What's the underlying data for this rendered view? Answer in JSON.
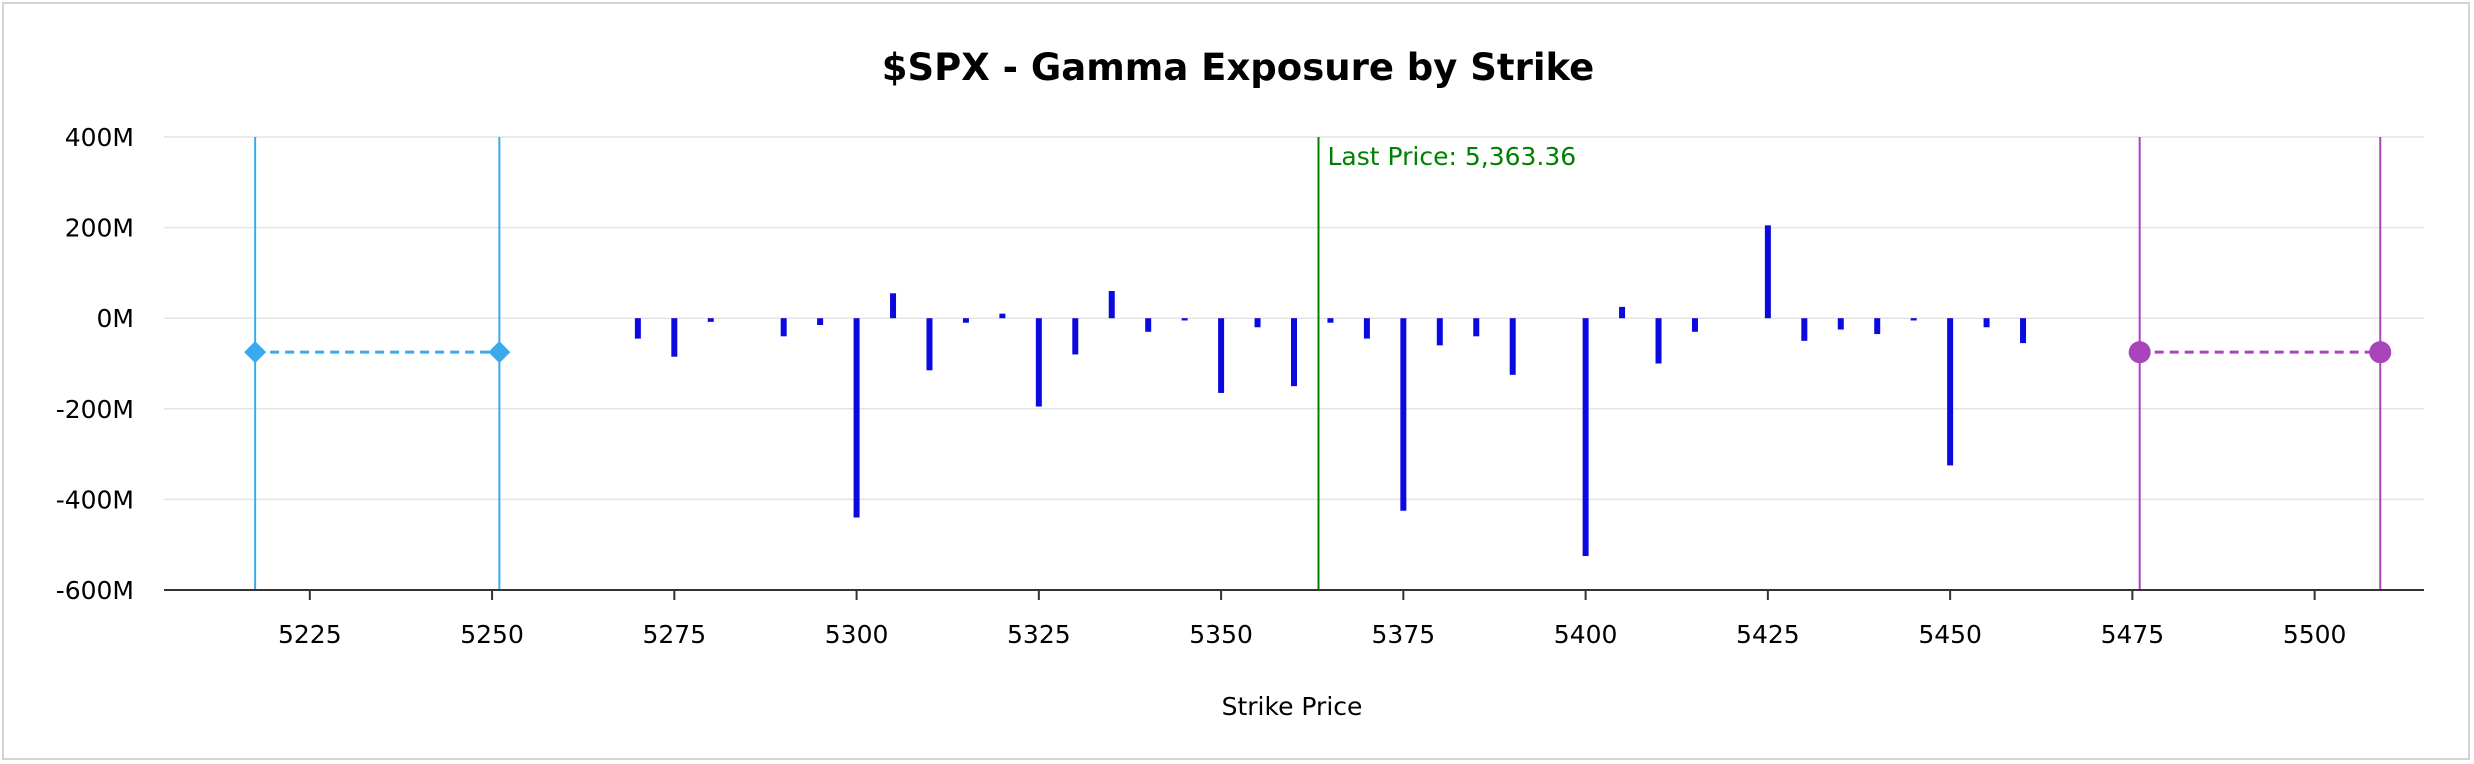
{
  "chart_data": {
    "type": "bar",
    "title": "$SPX - Gamma Exposure by Strike",
    "xlabel": "Strike Price",
    "ylabel": "",
    "unit": "M",
    "xlim": [
      5205,
      5515
    ],
    "ylim": [
      -600,
      400
    ],
    "x_ticks": [
      5225,
      5250,
      5275,
      5300,
      5325,
      5350,
      5375,
      5400,
      5425,
      5450,
      5475,
      5500
    ],
    "y_ticks": [
      400,
      200,
      0,
      -200,
      -400,
      -600
    ],
    "y_tick_labels": [
      "400M",
      "200M",
      "0M",
      "-200M",
      "-400M",
      "-600M"
    ],
    "grid": "horizontal",
    "bar_color": "#0a0ae0",
    "x": [
      5270,
      5275,
      5280,
      5290,
      5295,
      5300,
      5305,
      5310,
      5315,
      5320,
      5325,
      5330,
      5335,
      5340,
      5345,
      5350,
      5355,
      5360,
      5365,
      5370,
      5375,
      5380,
      5385,
      5390,
      5400,
      5405,
      5410,
      5415,
      5425,
      5430,
      5435,
      5440,
      5445,
      5450,
      5455,
      5460
    ],
    "values": [
      -45,
      -85,
      -8,
      -40,
      -15,
      -440,
      55,
      -115,
      -10,
      10,
      -195,
      -80,
      60,
      -30,
      -5,
      -165,
      -20,
      -150,
      -10,
      -45,
      -425,
      -60,
      -40,
      -125,
      -525,
      25,
      -100,
      -30,
      205,
      -50,
      -25,
      -35,
      -5,
      -325,
      -20,
      -55
    ],
    "last_price": {
      "label": "Last Price: 5,363.36",
      "value": 5363.36,
      "color": "#008000"
    },
    "put_wall": {
      "x1": 5217.5,
      "x2": 5251,
      "y": -75,
      "color": "#3aaaee"
    },
    "call_wall": {
      "x1": 5476,
      "x2": 5509,
      "y": -75,
      "color": "#aa44bb"
    }
  }
}
